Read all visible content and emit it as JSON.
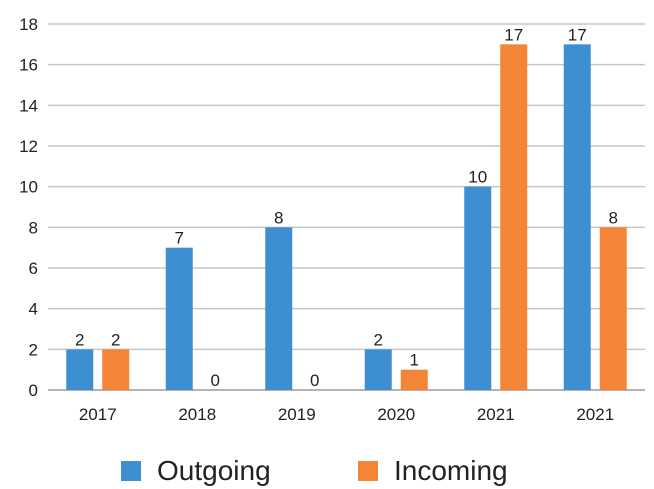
{
  "chart_data": {
    "type": "bar",
    "categories": [
      "2017",
      "2018",
      "2019",
      "2020",
      "2021",
      "2021"
    ],
    "series": [
      {
        "name": "Outgoing",
        "color": "#3e8fd1",
        "values": [
          2,
          7,
          8,
          2,
          10,
          17
        ]
      },
      {
        "name": "Incoming",
        "color": "#f48438",
        "values": [
          2,
          0,
          0,
          1,
          17,
          8
        ]
      }
    ],
    "yticks": [
      0,
      2,
      4,
      6,
      8,
      10,
      12,
      14,
      16,
      18
    ],
    "ylim": [
      0,
      18
    ],
    "grid": true,
    "data_labels": true,
    "legend_position": "bottom"
  }
}
